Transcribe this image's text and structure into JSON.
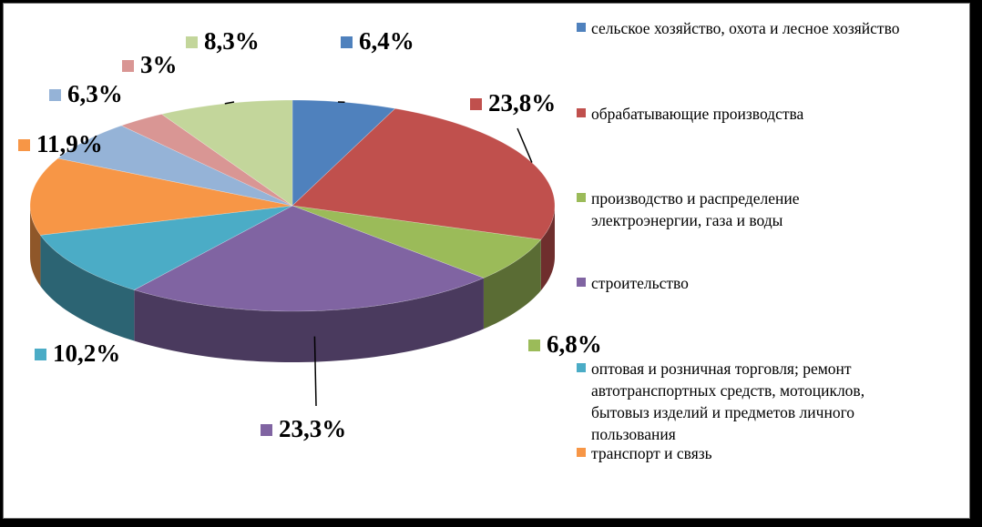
{
  "chart_data": {
    "type": "pie",
    "title": "",
    "slices": [
      {
        "label": "сельское хозяйство, охота и лесное хозяйство",
        "value": 6.4,
        "display": "6,4%",
        "color": "#4F81BD"
      },
      {
        "label": "обрабатывающие производства",
        "value": 23.8,
        "display": "23,8%",
        "color": "#C0504D"
      },
      {
        "label": "производство и распределение электроэнергии, газа и воды",
        "value": 6.8,
        "display": "6,8%",
        "color": "#9BBB59"
      },
      {
        "label": "строительство",
        "value": 23.3,
        "display": "23,3%",
        "color": "#8064A2"
      },
      {
        "label": "оптовая и розничная торговля; ремонт автотранспортных средств, мотоциклов, бытовыз изделий и предметов личного пользования",
        "value": 10.2,
        "display": "10,2%",
        "color": "#4BACC6"
      },
      {
        "label": "транспорт и связь",
        "value": 11.9,
        "display": "11,9%",
        "color": "#F79646"
      },
      {
        "label": "",
        "value": 6.3,
        "display": "6,3%",
        "color": "#95B3D7"
      },
      {
        "label": "",
        "value": 3.0,
        "display": "3%",
        "color": "#D99694"
      },
      {
        "label": "",
        "value": 8.3,
        "display": "8,3%",
        "color": "#C3D69B"
      }
    ],
    "legend": {
      "position": "right",
      "entries": [
        {
          "text": "сельское хозяйство, охота и лесное хозяйство",
          "color": "#4F81BD"
        },
        {
          "text": "обрабатывающие производства",
          "color": "#C0504D"
        },
        {
          "text": "производство и распределение электроэнергии, газа и воды",
          "color": "#9BBB59"
        },
        {
          "text": "строительство",
          "color": "#8064A2"
        },
        {
          "text": "оптовая и розничная торговля; ремонт автотранспортных средств, мотоциклов, бытовыз изделий и предметов личного пользования",
          "color": "#4BACC6"
        },
        {
          "text": "транспорт и связь",
          "color": "#F79646"
        }
      ]
    }
  }
}
